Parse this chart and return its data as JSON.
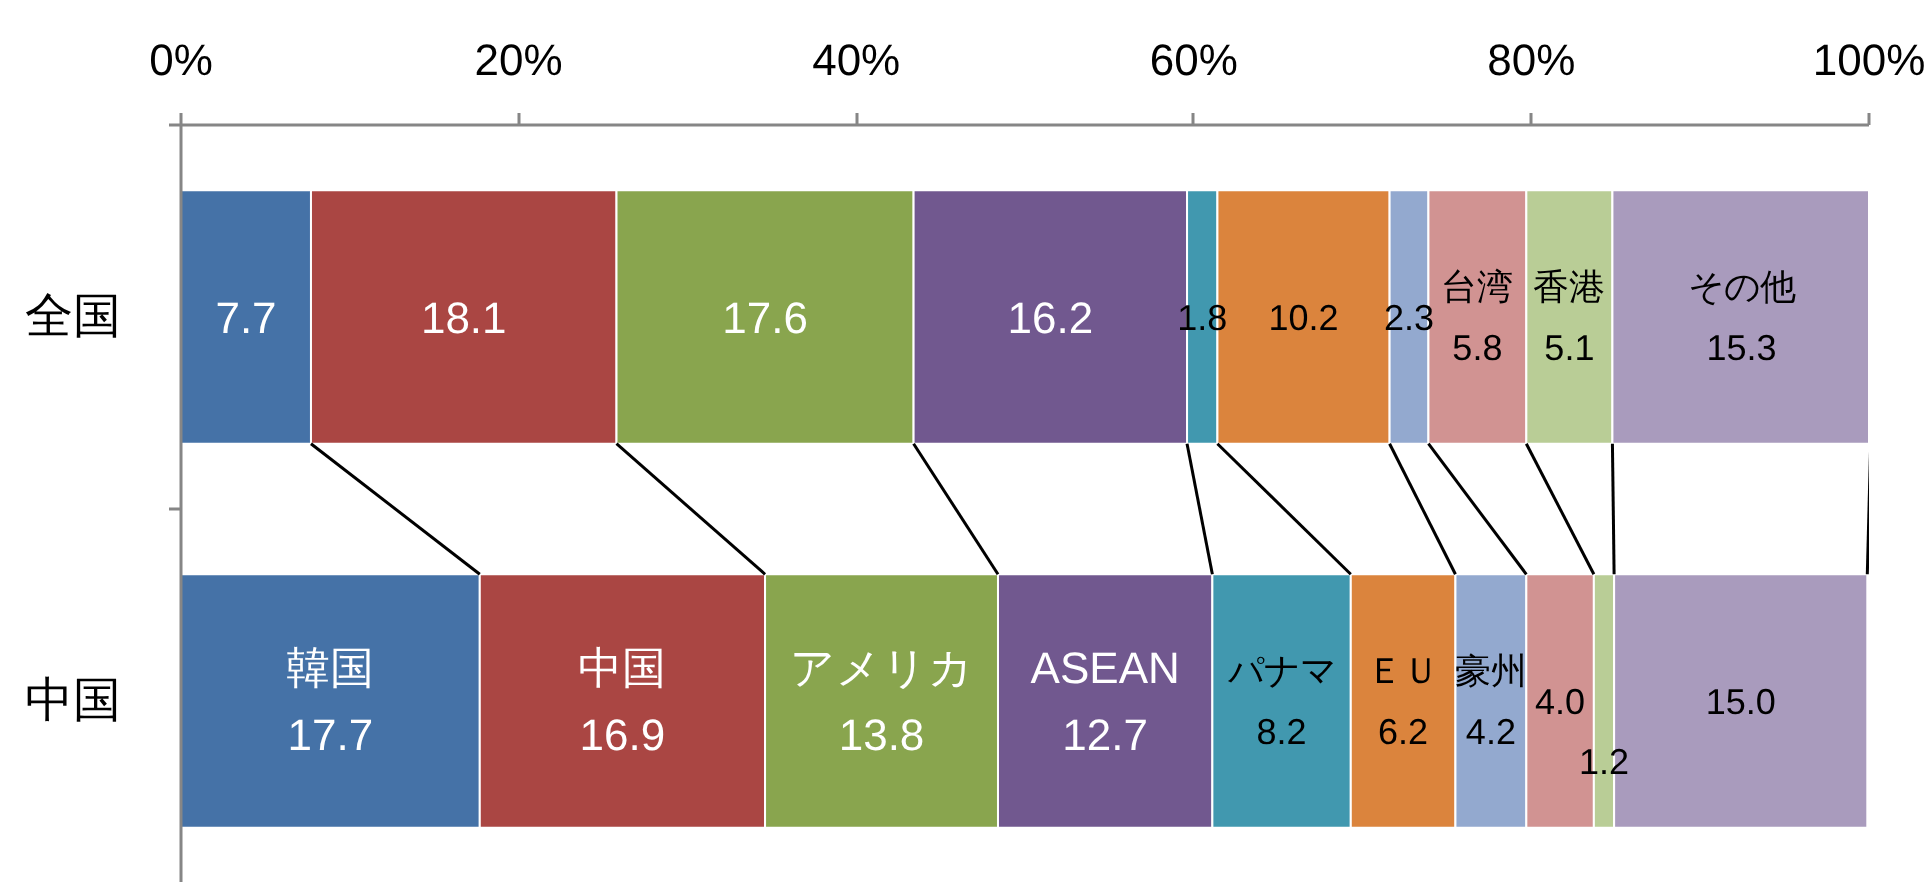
{
  "chart_data": {
    "type": "bar",
    "orientation": "horizontal",
    "stacked": true,
    "categories": [
      "全国",
      "中国"
    ],
    "xlim": [
      0,
      100
    ],
    "xticks": [
      {
        "value": 0,
        "label": "0%"
      },
      {
        "value": 20,
        "label": "20%"
      },
      {
        "value": 40,
        "label": "40%"
      },
      {
        "value": 60,
        "label": "60%"
      },
      {
        "value": 80,
        "label": "80%"
      },
      {
        "value": 100,
        "label": "100%"
      }
    ],
    "series": [
      {
        "color": "#4572a7",
        "values": [
          7.7,
          17.7
        ],
        "value_labels": [
          "7.7",
          "韓国\n17.7"
        ]
      },
      {
        "color": "#aa4643",
        "values": [
          18.1,
          16.9
        ],
        "value_labels": [
          "18.1",
          "中国\n16.9"
        ]
      },
      {
        "color": "#89a54e",
        "values": [
          17.6,
          13.8
        ],
        "value_labels": [
          "17.6",
          "アメリカ\n13.8"
        ]
      },
      {
        "color": "#71588f",
        "values": [
          16.2,
          12.7
        ],
        "value_labels": [
          "16.2",
          "ASEAN\n12.7"
        ]
      },
      {
        "color": "#4198af",
        "values": [
          1.8,
          8.2
        ],
        "value_labels": [
          "1.8",
          "パナマ\n8.2"
        ]
      },
      {
        "color": "#db843d",
        "values": [
          10.2,
          6.2
        ],
        "value_labels": [
          "10.2",
          "ＥＵ\n6.2"
        ]
      },
      {
        "color": "#93a9cf",
        "values": [
          2.3,
          4.2
        ],
        "value_labels": [
          "2.3",
          "豪州\n4.2"
        ]
      },
      {
        "color": "#d19392",
        "values": [
          5.8,
          4.0
        ],
        "value_labels": [
          "台湾\n5.8",
          "4.0"
        ]
      },
      {
        "color": "#b9cd96",
        "values": [
          5.1,
          1.2
        ],
        "value_labels": [
          "香港\n5.1",
          "1.2"
        ]
      },
      {
        "color": "#a99bbd",
        "values": [
          15.3,
          15.0
        ],
        "value_labels": [
          "その他\n15.3",
          "15.0"
        ]
      }
    ],
    "grid": false
  }
}
